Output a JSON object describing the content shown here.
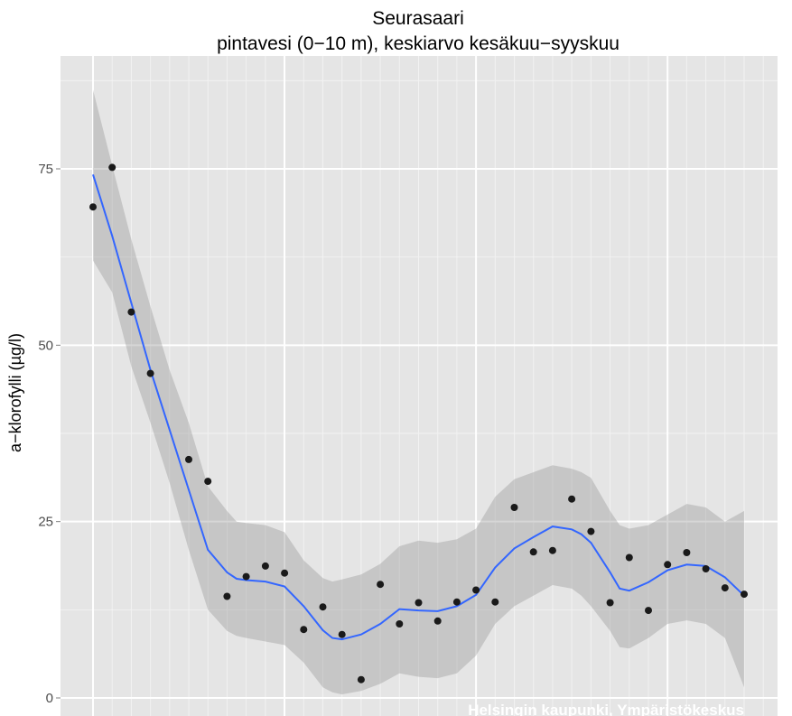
{
  "chart_data": {
    "type": "scatter",
    "title": "Seurasaari",
    "subtitle": "pintavesi (0−10 m), keskiarvo kesäkuu−syyskuu",
    "xlabel": "",
    "ylabel": "a−klorofylli (µg/l)",
    "ylim": [
      -2.5,
      90
    ],
    "y_ticks": [
      0,
      25,
      50,
      75
    ],
    "x_range": [
      1,
      35.5
    ],
    "x_tick_labels": [],
    "grid": true,
    "panel_background": "#e5e5e5",
    "grid_color": "#ffffff",
    "series": [
      {
        "type": "points",
        "color": "#1a1a1a",
        "x": [
          1,
          2,
          3,
          4,
          6,
          7,
          8,
          9,
          10,
          11,
          12,
          13,
          14,
          15,
          16,
          17,
          18,
          19,
          20,
          21,
          22,
          23,
          24,
          25,
          26,
          27,
          28,
          29,
          30,
          31,
          32,
          33,
          34,
          35
        ],
        "y": [
          69.6,
          75.2,
          54.7,
          46.0,
          33.8,
          30.7,
          14.4,
          17.2,
          18.7,
          17.7,
          9.7,
          12.9,
          9.0,
          2.6,
          16.1,
          10.5,
          13.5,
          10.9,
          13.6,
          15.3,
          13.6,
          27.0,
          20.7,
          20.9,
          28.2,
          23.6,
          13.5,
          19.9,
          12.4,
          18.9,
          20.6,
          18.3,
          15.6,
          14.7
        ]
      },
      {
        "type": "smooth_line",
        "color": "#3366ff",
        "x": [
          1,
          2,
          3,
          4,
          5,
          6,
          7,
          8,
          8.5,
          9,
          10,
          11,
          12,
          13,
          13.5,
          14,
          15,
          16,
          17,
          18,
          19,
          20,
          21,
          22,
          23,
          24,
          25,
          26,
          26.5,
          27,
          28,
          28.5,
          29,
          30,
          31,
          32,
          33,
          34,
          35
        ],
        "y": [
          74.2,
          65.5,
          56.0,
          46.5,
          38.0,
          29.5,
          21.0,
          17.8,
          16.9,
          16.7,
          16.5,
          15.8,
          13.0,
          9.6,
          8.5,
          8.3,
          9.0,
          10.5,
          12.6,
          12.4,
          12.3,
          13.0,
          14.6,
          18.5,
          21.2,
          22.8,
          24.3,
          23.9,
          23.2,
          22.0,
          17.8,
          15.5,
          15.2,
          16.4,
          18.1,
          18.9,
          18.7,
          17.1,
          14.5
        ]
      },
      {
        "type": "confidence_band",
        "color": "#999999",
        "x": [
          1,
          2,
          3,
          4,
          5,
          6,
          7,
          8,
          8.5,
          9,
          10,
          11,
          12,
          13,
          13.5,
          14,
          15,
          16,
          17,
          18,
          19,
          20,
          21,
          22,
          23,
          24,
          25,
          26,
          26.5,
          27,
          28,
          28.5,
          29,
          30,
          31,
          32,
          33,
          34,
          35
        ],
        "upper": [
          86.2,
          75.5,
          65.0,
          55.5,
          46.5,
          39.0,
          30.0,
          26.5,
          25.0,
          24.8,
          24.5,
          23.5,
          19.5,
          17.0,
          16.5,
          16.8,
          17.5,
          19.0,
          21.5,
          22.3,
          22.0,
          22.5,
          24.0,
          28.5,
          31.0,
          32.0,
          33.0,
          32.5,
          32.0,
          31.2,
          26.5,
          24.5,
          24.0,
          24.5,
          26.0,
          27.5,
          27.0,
          25.0,
          26.5
        ],
        "lower": [
          62.0,
          57.5,
          47.0,
          39.0,
          30.5,
          21.0,
          12.5,
          9.5,
          8.8,
          8.5,
          8.0,
          7.5,
          5.0,
          1.5,
          0.8,
          0.5,
          1.0,
          2.0,
          3.5,
          3.0,
          2.8,
          3.5,
          6.0,
          10.5,
          13.0,
          14.5,
          16.0,
          15.5,
          14.5,
          13.0,
          9.5,
          7.2,
          7.0,
          8.5,
          10.5,
          11.0,
          10.5,
          8.5,
          1.5
        ]
      }
    ],
    "watermark": "Helsingin kaupunki, Ympäristökeskus"
  }
}
